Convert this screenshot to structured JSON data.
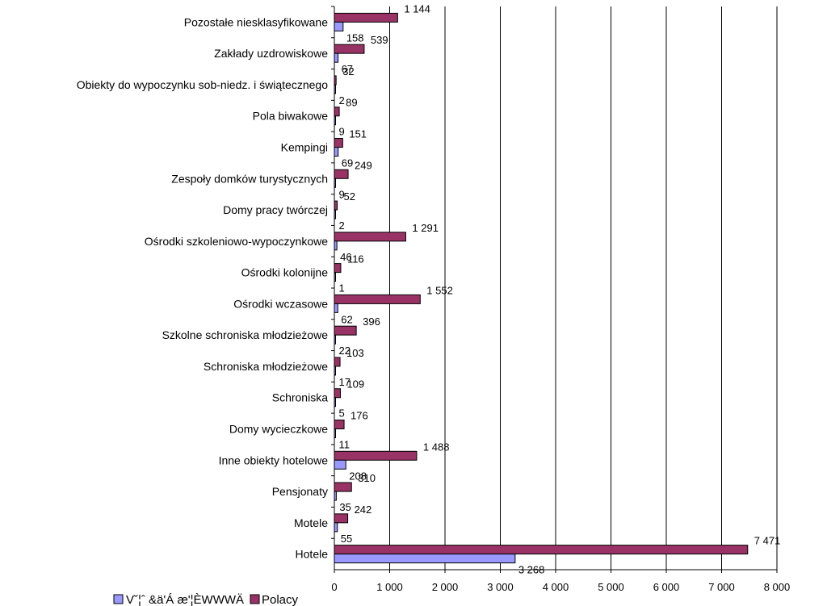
{
  "chart_data": {
    "type": "bar",
    "orientation": "horizontal",
    "categories": [
      "Pozostałe niesklasyfikowane",
      "Zakłady uzdrowiskowe",
      "Obiekty do wypoczynku sob-niedz. i świątecznego",
      "Pola biwakowe",
      "Kempingi",
      "Zespoły domków turystycznych",
      "Domy pracy twórczej",
      "Ośrodki szkoleniowo-wypoczynkowe",
      "Ośrodki kolonijne",
      "Ośrodki wczasowe",
      "Szkolne schroniska młodzieżowe",
      "Schroniska młodzieżowe",
      "Schroniska",
      "Domy wycieczkowe",
      "Inne obiekty hotelowe",
      "Pensjonaty",
      "Motele",
      "Hotele"
    ],
    "series": [
      {
        "name": "Polacy",
        "color": "#993366",
        "values": [
          1144,
          539,
          32,
          89,
          151,
          249,
          52,
          1291,
          116,
          1552,
          396,
          103,
          109,
          176,
          1488,
          310,
          242,
          7471
        ],
        "labels": [
          "1 144",
          "539",
          "32",
          "89",
          "151",
          "249",
          "52",
          "1 291",
          "116",
          "1 552",
          "396",
          "103",
          "109",
          "176",
          "1 488",
          "310",
          "242",
          "7 471"
        ]
      },
      {
        "name": "",
        "color": "#9999ff",
        "values": [
          158,
          67,
          2,
          9,
          69,
          9,
          2,
          46,
          1,
          62,
          22,
          17,
          5,
          11,
          208,
          35,
          55,
          3268
        ],
        "labels": [
          "158",
          "67",
          "2",
          "9",
          "69",
          "9",
          "2",
          "46",
          "1",
          "62",
          "22",
          "17",
          "5",
          "11",
          "208",
          "35",
          "55",
          "3 268"
        ]
      }
    ],
    "xlim": [
      0,
      8000
    ],
    "xticks": [
      0,
      1000,
      2000,
      3000,
      4000,
      5000,
      6000,
      7000,
      8000
    ],
    "xtick_labels": [
      "0",
      "1 000",
      "2 000",
      "3 000",
      "4 000",
      "5 000",
      "6 000",
      "7 000",
      "8 000"
    ],
    "grid": "vertical",
    "legend_position": "bottom-left",
    "legend_labels": [
      "V˘¦ˆ &ä'Á æ'¦ÈWWWÄ",
      "Polacy"
    ],
    "title": "",
    "xlabel": "",
    "ylabel": ""
  }
}
